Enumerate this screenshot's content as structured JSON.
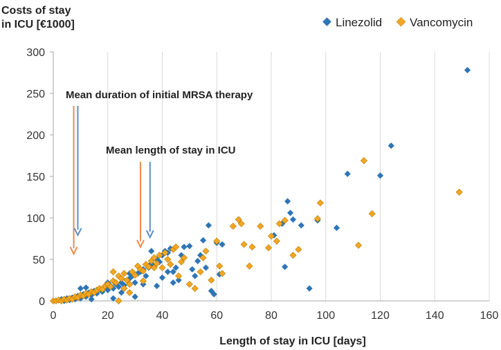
{
  "chart_data": {
    "type": "scatter",
    "ylabel_lines": [
      "Costs of stay",
      "in ICU [€1000]"
    ],
    "xlabel": "Length of stay in ICU [days]",
    "xlim": [
      0,
      160
    ],
    "ylim": [
      0,
      300
    ],
    "x_ticks": [
      0,
      20,
      40,
      60,
      80,
      100,
      120,
      140,
      160
    ],
    "y_ticks": [
      0,
      50,
      100,
      150,
      200,
      250,
      300
    ],
    "grid": "vertical",
    "legend_position": "top-right",
    "series": [
      {
        "name": "Linezolid",
        "color": "#2E75B6",
        "marker": "diamond",
        "points": [
          [
            1,
            0
          ],
          [
            2,
            1
          ],
          [
            3,
            2
          ],
          [
            4,
            0
          ],
          [
            5,
            3
          ],
          [
            6,
            1
          ],
          [
            7,
            4
          ],
          [
            8,
            2
          ],
          [
            9,
            6
          ],
          [
            10,
            3
          ],
          [
            11,
            8
          ],
          [
            12,
            5
          ],
          [
            13,
            10
          ],
          [
            14,
            7
          ],
          [
            15,
            12
          ],
          [
            16,
            9
          ],
          [
            17,
            14
          ],
          [
            18,
            11
          ],
          [
            19,
            16
          ],
          [
            20,
            13
          ],
          [
            21,
            18
          ],
          [
            22,
            15
          ],
          [
            23,
            20
          ],
          [
            24,
            17
          ],
          [
            25,
            22
          ],
          [
            26,
            19
          ],
          [
            27,
            25
          ],
          [
            28,
            27
          ],
          [
            29,
            30
          ],
          [
            30,
            22
          ],
          [
            31,
            33
          ],
          [
            32,
            35
          ],
          [
            33,
            38
          ],
          [
            34,
            30
          ],
          [
            35,
            40
          ],
          [
            36,
            45
          ],
          [
            37,
            42
          ],
          [
            38,
            50
          ],
          [
            39,
            47
          ],
          [
            40,
            55
          ],
          [
            41,
            60
          ],
          [
            42,
            58
          ],
          [
            43,
            63
          ],
          [
            44,
            35
          ],
          [
            45,
            40
          ],
          [
            46,
            25
          ],
          [
            47,
            55
          ],
          [
            48,
            65
          ],
          [
            50,
            66
          ],
          [
            51,
            38
          ],
          [
            52,
            30
          ],
          [
            53,
            48
          ],
          [
            54,
            55
          ],
          [
            55,
            73
          ],
          [
            56,
            40
          ],
          [
            57,
            91
          ],
          [
            58,
            12
          ],
          [
            59,
            8
          ],
          [
            60,
            70
          ],
          [
            61,
            32
          ],
          [
            62,
            68
          ],
          [
            10,
            15
          ],
          [
            12,
            16
          ],
          [
            14,
            2
          ],
          [
            20,
            22
          ],
          [
            22,
            3
          ],
          [
            25,
            10
          ],
          [
            28,
            33
          ],
          [
            30,
            5
          ],
          [
            33,
            20
          ],
          [
            36,
            60
          ],
          [
            38,
            18
          ],
          [
            40,
            28
          ],
          [
            42,
            35
          ],
          [
            44,
            22
          ],
          [
            85,
            41
          ],
          [
            86,
            120
          ],
          [
            87,
            106
          ],
          [
            88,
            98
          ],
          [
            84,
            93
          ],
          [
            91,
            91
          ],
          [
            94,
            15
          ],
          [
            97,
            97
          ],
          [
            81,
            79
          ],
          [
            104,
            88
          ],
          [
            108,
            153
          ],
          [
            120,
            151
          ],
          [
            124,
            187
          ],
          [
            152,
            278
          ]
        ]
      },
      {
        "name": "Vancomycin",
        "color": "#F5A623",
        "marker": "diamond",
        "points": [
          [
            0,
            0
          ],
          [
            1,
            0
          ],
          [
            2,
            1
          ],
          [
            3,
            0
          ],
          [
            4,
            2
          ],
          [
            5,
            1
          ],
          [
            6,
            3
          ],
          [
            7,
            2
          ],
          [
            8,
            5
          ],
          [
            9,
            4
          ],
          [
            10,
            7
          ],
          [
            11,
            6
          ],
          [
            12,
            9
          ],
          [
            13,
            8
          ],
          [
            14,
            11
          ],
          [
            15,
            10
          ],
          [
            16,
            13
          ],
          [
            17,
            15
          ],
          [
            18,
            14
          ],
          [
            19,
            18
          ],
          [
            20,
            20
          ],
          [
            21,
            17
          ],
          [
            22,
            24
          ],
          [
            23,
            22
          ],
          [
            24,
            30
          ],
          [
            25,
            27
          ],
          [
            26,
            33
          ],
          [
            27,
            25
          ],
          [
            28,
            20
          ],
          [
            29,
            35
          ],
          [
            30,
            31
          ],
          [
            31,
            42
          ],
          [
            32,
            38
          ],
          [
            33,
            36
          ],
          [
            34,
            44
          ],
          [
            35,
            41
          ],
          [
            36,
            48
          ],
          [
            37,
            52
          ],
          [
            38,
            45
          ],
          [
            39,
            55
          ],
          [
            40,
            40
          ],
          [
            41,
            58
          ],
          [
            42,
            50
          ],
          [
            43,
            44
          ],
          [
            44,
            62
          ],
          [
            45,
            65
          ],
          [
            46,
            30
          ],
          [
            47,
            47
          ],
          [
            48,
            52
          ],
          [
            50,
            20
          ],
          [
            52,
            15
          ],
          [
            54,
            35
          ],
          [
            55,
            52
          ],
          [
            56,
            60
          ],
          [
            58,
            25
          ],
          [
            60,
            72
          ],
          [
            61,
            42
          ],
          [
            62,
            33
          ],
          [
            66,
            90
          ],
          [
            68,
            98
          ],
          [
            69,
            93
          ],
          [
            70,
            68
          ],
          [
            72,
            42
          ],
          [
            73,
            65
          ],
          [
            76,
            90
          ],
          [
            79,
            64
          ],
          [
            80,
            78
          ],
          [
            82,
            72
          ],
          [
            83,
            93
          ],
          [
            85,
            97
          ],
          [
            88,
            55
          ],
          [
            90,
            62
          ],
          [
            97,
            99
          ],
          [
            98,
            118
          ],
          [
            112,
            67
          ],
          [
            114,
            169
          ],
          [
            117,
            105
          ],
          [
            149,
            131
          ],
          [
            24,
            0
          ],
          [
            22,
            35
          ],
          [
            26,
            15
          ],
          [
            28,
            10
          ],
          [
            33,
            24
          ],
          [
            37,
            40
          ]
        ]
      }
    ],
    "annotations": [
      {
        "text": "Mean duration of initial MRSA therapy",
        "arrows": [
          {
            "series": "Vancomycin",
            "x": 7.5
          },
          {
            "series": "Linezolid",
            "x": 9
          }
        ]
      },
      {
        "text": "Mean length of stay in ICU",
        "arrows": [
          {
            "series": "Vancomycin",
            "x": 32
          },
          {
            "series": "Linezolid",
            "x": 35.5
          }
        ]
      }
    ]
  }
}
